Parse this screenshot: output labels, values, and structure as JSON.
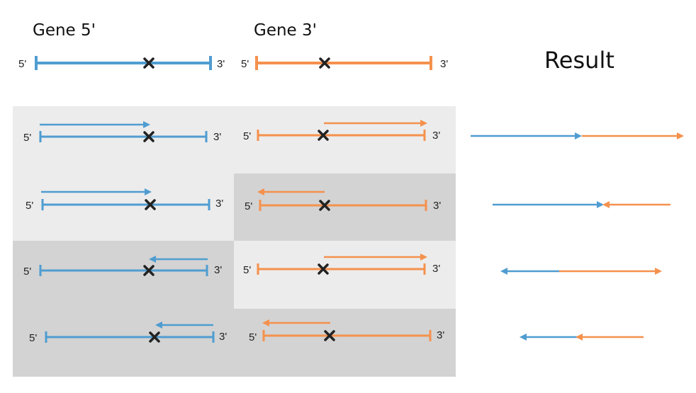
{
  "headers": {
    "gene5": "Gene 5'",
    "gene3": "Gene 3'",
    "result": "Result"
  },
  "end_labels": {
    "five": "5'",
    "three": "3'"
  },
  "colors": {
    "gene5": "#4f9dd1",
    "gene3": "#f5914d",
    "breakpoint": "#222222",
    "light_panel": "#ececec",
    "dark_panel": "#d3d3d3"
  },
  "rows": [
    {
      "gene5_direction": "forward",
      "gene3_direction": "forward",
      "result": "blue forward joined to orange forward"
    },
    {
      "gene5_direction": "forward",
      "gene3_direction": "reverse",
      "result": "blue forward meets orange reverse"
    },
    {
      "gene5_direction": "reverse",
      "gene3_direction": "forward",
      "result": "blue reverse and orange forward point outward"
    },
    {
      "gene5_direction": "reverse",
      "gene3_direction": "reverse",
      "result": "blue reverse joined to orange reverse"
    }
  ]
}
